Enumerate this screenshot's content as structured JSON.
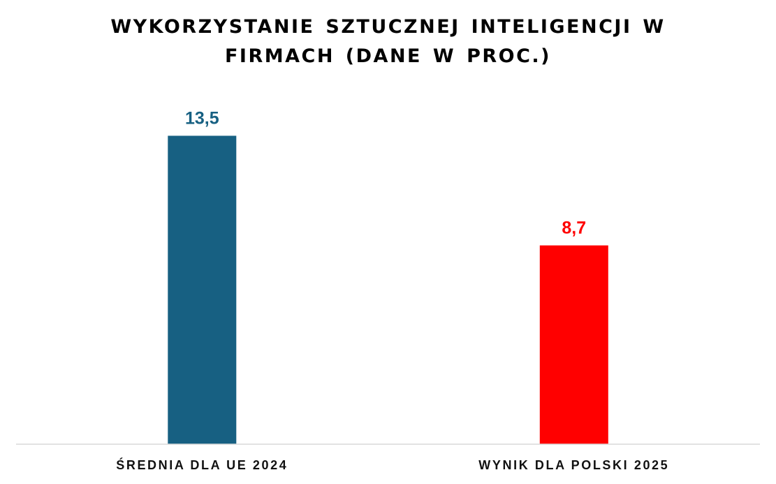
{
  "chart_data": {
    "type": "bar",
    "title_lines": [
      "WYKORZYSTANIE SZTUCZNEJ INTELIGENCJI W",
      "FIRMACH (DANE W PROC.)"
    ],
    "categories": [
      "ŚREDNIA DLA UE 2024",
      "WYNIK DLA POLSKI 2025"
    ],
    "values": [
      13.5,
      8.7
    ],
    "value_labels": [
      "13,5",
      "8,7"
    ],
    "bar_colors": [
      "#176082",
      "#FF0000"
    ],
    "ylim": [
      0,
      14
    ],
    "grid": false,
    "legend": "none"
  }
}
